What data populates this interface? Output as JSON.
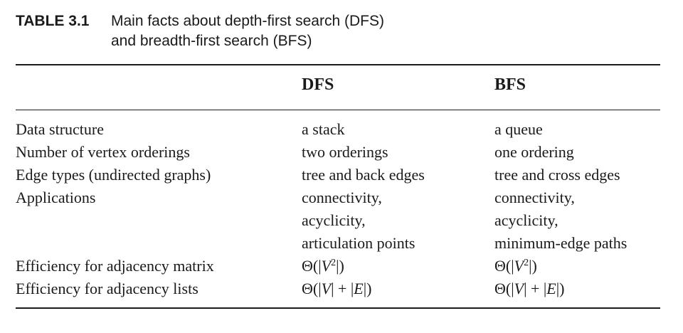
{
  "caption": {
    "label": "TABLE 3.1",
    "line1": "Main facts about depth-first search (DFS)",
    "line2": "and breadth-first search (BFS)"
  },
  "header": {
    "dfs": "DFS",
    "bfs": "BFS"
  },
  "rows": [
    {
      "label": "Data structure",
      "dfs": [
        "a stack"
      ],
      "bfs": [
        "a queue"
      ]
    },
    {
      "label": "Number of vertex orderings",
      "dfs": [
        "two orderings"
      ],
      "bfs": [
        "one ordering"
      ]
    },
    {
      "label": "Edge types (undirected graphs)",
      "dfs": [
        "tree and back edges"
      ],
      "bfs": [
        "tree and cross edges"
      ]
    },
    {
      "label": "Applications",
      "dfs": [
        "connectivity,",
        "acyclicity,",
        "articulation points"
      ],
      "bfs": [
        "connectivity,",
        "acyclicity,",
        "minimum-edge paths"
      ]
    }
  ],
  "efficiency": {
    "matrix": {
      "label": "Efficiency for adjacency matrix",
      "dfs": "Θ(|V²|)",
      "bfs": "Θ(|V²|)"
    },
    "lists": {
      "label": "Efficiency for adjacency lists",
      "dfs": "Θ(|V| + |E|)",
      "bfs": "Θ(|V| + |E|)"
    }
  }
}
